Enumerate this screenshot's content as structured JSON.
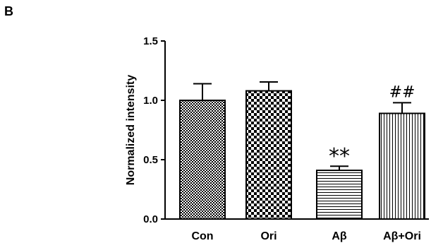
{
  "panel_label": "B",
  "chart_data": {
    "type": "bar",
    "title": "",
    "xlabel": "",
    "ylabel": "Normalized intensity",
    "ylim": [
      0,
      1.5
    ],
    "yticks": [
      "0.0",
      "0.5",
      "1.0",
      "1.5"
    ],
    "categories": [
      "Con",
      "Ori",
      "Aβ",
      "Aβ+Ori"
    ],
    "values": [
      1.0,
      1.08,
      0.41,
      0.89
    ],
    "errors": [
      0.14,
      0.075,
      0.035,
      0.09
    ],
    "significance": [
      "",
      "",
      "**",
      "##"
    ],
    "patterns": [
      "fine-checker",
      "coarse-checker",
      "horizontal-lines",
      "vertical-lines"
    ],
    "colors": {
      "bar_stroke": "#000000",
      "fill": "#000000",
      "background": "#ffffff"
    }
  }
}
